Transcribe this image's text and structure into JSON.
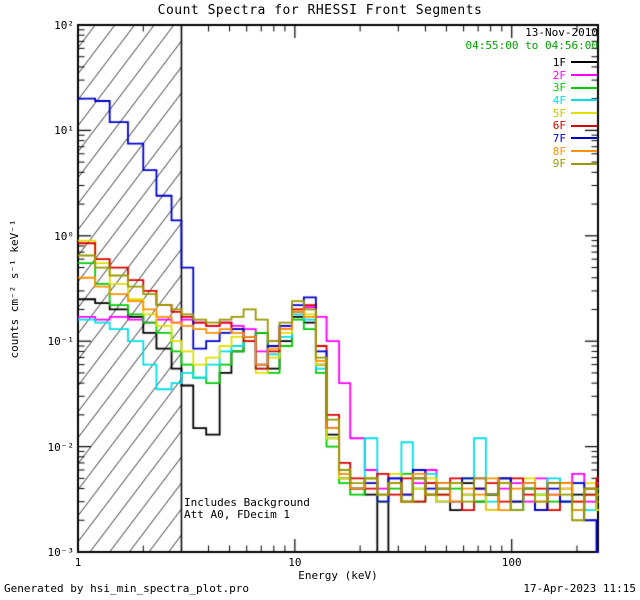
{
  "header": {
    "title": "Count Spectra for RHESSI Front Segments",
    "date": "13-Nov-2010",
    "time_range": "04:55:00 to 04:56:00"
  },
  "colors": {
    "time_range_text": "#00a000",
    "axis": "#000000",
    "background": "#ffffff"
  },
  "annotations": {
    "line1": "Includes Background",
    "line2": "Att A0, FDecim 1"
  },
  "footer": {
    "left": "Generated by hsi_min_spectra_plot.pro",
    "right": "17-Apr-2023 11:15"
  },
  "chart_data": {
    "type": "line",
    "step": true,
    "scale": "log-log",
    "title": "Count Spectra for RHESSI Front Segments",
    "xlabel": "Energy (keV)",
    "ylabel": "counts cm⁻² s⁻¹ keV⁻¹",
    "xlim": [
      1,
      250
    ],
    "ylim": [
      0.001,
      100
    ],
    "x_ticks": [
      {
        "v": 1,
        "label": "1"
      },
      {
        "v": 10,
        "label": "10"
      },
      {
        "v": 100,
        "label": "100"
      }
    ],
    "y_ticks": [
      {
        "v": 0.001,
        "label": "10⁻³"
      },
      {
        "v": 0.01,
        "label": "10⁻²"
      },
      {
        "v": 0.1,
        "label": "10⁻¹"
      },
      {
        "v": 1,
        "label": "10⁰"
      },
      {
        "v": 10,
        "label": "10¹"
      },
      {
        "v": 100,
        "label": "10²"
      }
    ],
    "hatch_region": {
      "xmin": 1,
      "xmax": 3
    },
    "energies_kev": [
      1.0,
      1.2,
      1.4,
      1.7,
      2.0,
      2.3,
      2.7,
      3.0,
      3.4,
      3.9,
      4.5,
      5.1,
      5.8,
      6.6,
      7.5,
      8.5,
      9.7,
      11,
      12.5,
      14,
      16,
      18,
      21,
      24,
      27,
      31,
      35,
      40,
      45,
      52,
      59,
      67,
      76,
      87,
      99,
      113,
      128,
      146,
      167,
      190,
      216,
      246,
      280,
      320
    ],
    "series": [
      {
        "name": "1F",
        "color": "#000000",
        "values": [
          0.25,
          0.23,
          0.2,
          0.17,
          0.12,
          0.085,
          0.055,
          0.038,
          0.015,
          0.013,
          0.05,
          0.08,
          0.1,
          0.12,
          0.055,
          0.1,
          0.17,
          0.15,
          0.06,
          0.013,
          0.005,
          0.004,
          0.0035,
          0.001,
          0.0045,
          0.003,
          0.005,
          0.0035,
          0.004,
          0.0025,
          0.0045,
          0.003,
          0.0035,
          0.005,
          0.003,
          0.004,
          0.0025,
          0.0045,
          0.003,
          0.0035,
          0.004,
          0.0025,
          0.003,
          0.0035
        ]
      },
      {
        "name": "2F",
        "color": "#ff00ff",
        "values": [
          0.17,
          0.16,
          0.17,
          0.16,
          0.15,
          0.16,
          0.15,
          0.16,
          0.15,
          0.14,
          0.15,
          0.14,
          0.13,
          0.08,
          0.1,
          0.14,
          0.19,
          0.21,
          0.17,
          0.1,
          0.04,
          0.012,
          0.006,
          0.004,
          0.005,
          0.0035,
          0.0045,
          0.006,
          0.003,
          0.0045,
          0.0035,
          0.005,
          0.0025,
          0.004,
          0.0045,
          0.003,
          0.005,
          0.0035,
          0.004,
          0.0055,
          0.003,
          0.0045,
          0.0025,
          0.0035
        ]
      },
      {
        "name": "3F",
        "color": "#00cc00",
        "values": [
          0.55,
          0.35,
          0.22,
          0.18,
          0.15,
          0.12,
          0.08,
          0.06,
          0.045,
          0.04,
          0.06,
          0.08,
          0.1,
          0.12,
          0.05,
          0.09,
          0.16,
          0.13,
          0.05,
          0.01,
          0.0045,
          0.0035,
          0.005,
          0.003,
          0.004,
          0.0055,
          0.003,
          0.0045,
          0.0035,
          0.004,
          0.005,
          0.003,
          0.0035,
          0.0045,
          0.0025,
          0.004,
          0.0035,
          0.003,
          0.0045,
          0.0025,
          0.0035,
          0.004,
          0.002,
          0.003
        ]
      },
      {
        "name": "4F",
        "color": "#00e0e8",
        "values": [
          0.16,
          0.15,
          0.13,
          0.1,
          0.06,
          0.035,
          0.04,
          0.05,
          0.045,
          0.06,
          0.08,
          0.09,
          0.1,
          0.055,
          0.075,
          0.11,
          0.18,
          0.16,
          0.055,
          0.012,
          0.0055,
          0.004,
          0.012,
          0.0035,
          0.005,
          0.011,
          0.004,
          0.0055,
          0.003,
          0.0045,
          0.0035,
          0.012,
          0.003,
          0.0045,
          0.0025,
          0.004,
          0.0035,
          0.005,
          0.003,
          0.0045,
          0.0025,
          0.0035,
          0.003,
          0.004
        ]
      },
      {
        "name": "5F",
        "color": "#e0e000",
        "values": [
          0.9,
          0.55,
          0.35,
          0.25,
          0.18,
          0.14,
          0.1,
          0.08,
          0.06,
          0.07,
          0.09,
          0.11,
          0.1,
          0.05,
          0.07,
          0.12,
          0.2,
          0.18,
          0.06,
          0.012,
          0.005,
          0.004,
          0.0045,
          0.003,
          0.0055,
          0.0035,
          0.004,
          0.005,
          0.003,
          0.0045,
          0.0035,
          0.004,
          0.0025,
          0.0045,
          0.003,
          0.005,
          0.0035,
          0.0025,
          0.004,
          0.003,
          0.0045,
          0.0025,
          0.0035,
          0.003
        ]
      },
      {
        "name": "6F",
        "color": "#dd0000",
        "values": [
          0.85,
          0.6,
          0.5,
          0.38,
          0.3,
          0.22,
          0.19,
          0.17,
          0.15,
          0.14,
          0.15,
          0.13,
          0.1,
          0.055,
          0.08,
          0.13,
          0.2,
          0.22,
          0.09,
          0.02,
          0.007,
          0.005,
          0.004,
          0.0055,
          0.0035,
          0.005,
          0.003,
          0.0045,
          0.0035,
          0.005,
          0.0025,
          0.004,
          0.0045,
          0.003,
          0.005,
          0.0035,
          0.004,
          0.0025,
          0.0045,
          0.003,
          0.0035,
          0.005,
          0.0025,
          0.002
        ]
      },
      {
        "name": "7F",
        "color": "#0000cc",
        "values": [
          20,
          19,
          12,
          7.5,
          4.2,
          2.4,
          1.4,
          0.5,
          0.085,
          0.1,
          0.12,
          0.13,
          0.11,
          0.06,
          0.09,
          0.14,
          0.22,
          0.26,
          0.08,
          0.015,
          0.006,
          0.004,
          0.0045,
          0.003,
          0.005,
          0.0035,
          0.006,
          0.004,
          0.0045,
          0.003,
          0.005,
          0.004,
          0.0035,
          0.005,
          0.003,
          0.0045,
          0.0025,
          0.004,
          0.003,
          0.0045,
          0.002,
          0.001,
          0.0015,
          0.001
        ]
      },
      {
        "name": "8F",
        "color": "#ff9000",
        "values": [
          0.4,
          0.33,
          0.28,
          0.24,
          0.2,
          0.17,
          0.15,
          0.14,
          0.13,
          0.12,
          0.13,
          0.12,
          0.11,
          0.06,
          0.085,
          0.13,
          0.19,
          0.17,
          0.065,
          0.015,
          0.0055,
          0.004,
          0.005,
          0.0035,
          0.0045,
          0.003,
          0.0055,
          0.0035,
          0.0045,
          0.003,
          0.004,
          0.0035,
          0.005,
          0.0025,
          0.004,
          0.0045,
          0.003,
          0.0035,
          0.0045,
          0.0025,
          0.004,
          0.0035,
          0.003,
          0.0025
        ]
      },
      {
        "name": "9F",
        "color": "#999900",
        "values": [
          0.65,
          0.5,
          0.42,
          0.33,
          0.28,
          0.22,
          0.2,
          0.18,
          0.16,
          0.15,
          0.16,
          0.17,
          0.2,
          0.16,
          0.1,
          0.15,
          0.24,
          0.2,
          0.07,
          0.018,
          0.006,
          0.0045,
          0.005,
          0.0035,
          0.0045,
          0.003,
          0.005,
          0.0035,
          0.004,
          0.0045,
          0.003,
          0.005,
          0.0035,
          0.0045,
          0.0025,
          0.004,
          0.003,
          0.0045,
          0.0035,
          0.002,
          0.004,
          0.003,
          0.0045,
          0.0035
        ]
      }
    ]
  }
}
